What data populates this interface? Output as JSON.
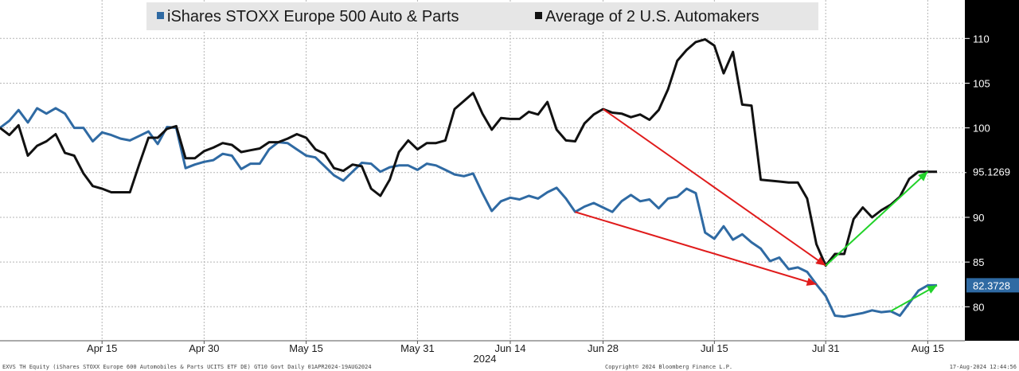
{
  "chart_data": {
    "type": "line",
    "title": "",
    "ylim": [
      76.2,
      114.3
    ],
    "y_ticks": [
      80,
      85,
      90,
      95,
      100,
      105,
      110
    ],
    "y_axis_position": "right",
    "grid": true,
    "legend_placement": "top",
    "x_ticks": [
      {
        "label": "Apr 15",
        "i": 11
      },
      {
        "label": "Apr 30",
        "i": 22
      },
      {
        "label": "May 15",
        "i": 33
      },
      {
        "label": "May 31",
        "i": 45
      },
      {
        "label": "Jun 14",
        "i": 55
      },
      {
        "label": "Jun 28",
        "i": 65
      },
      {
        "label": "Jul 15",
        "i": 77
      },
      {
        "label": "Jul 31",
        "i": 89
      },
      {
        "label": "Aug 15",
        "i": 100
      }
    ],
    "x_range": [
      0,
      104
    ],
    "xlabel": "2024",
    "series": [
      {
        "name": "iShares STOXX Europe 500 Auto & Parts",
        "color": "#2f6aa3",
        "last_value": "82.3728",
        "values": [
          100.0,
          100.8,
          102.0,
          100.6,
          102.2,
          101.6,
          102.2,
          101.6,
          100.0,
          100.0,
          98.5,
          99.5,
          99.2,
          98.8,
          98.6,
          99.1,
          99.6,
          98.2,
          100.1,
          100.0,
          95.5,
          95.9,
          96.2,
          96.4,
          97.1,
          96.9,
          95.4,
          96.0,
          96.0,
          97.6,
          98.4,
          98.3,
          97.6,
          96.9,
          96.7,
          95.7,
          94.7,
          94.1,
          95.1,
          96.1,
          96.0,
          95.1,
          95.6,
          95.8,
          95.8,
          95.3,
          96.0,
          95.8,
          95.3,
          94.8,
          94.6,
          94.9,
          92.7,
          90.7,
          91.8,
          92.2,
          92.0,
          92.4,
          92.1,
          92.8,
          93.3,
          92.1,
          90.6,
          91.2,
          91.6,
          91.1,
          90.6,
          91.8,
          92.5,
          91.8,
          92.0,
          91.0,
          92.1,
          92.3,
          93.2,
          92.7,
          88.3,
          87.6,
          89.0,
          87.5,
          88.1,
          87.2,
          86.5,
          85.1,
          85.5,
          84.2,
          84.4,
          83.9,
          82.5,
          81.2,
          79.0,
          78.9,
          79.1,
          79.3,
          79.6,
          79.4,
          79.5,
          79.0,
          80.4,
          81.8,
          82.4,
          82.4
        ]
      },
      {
        "name": "Average of 2 U.S. Automakers",
        "color": "#111111",
        "last_value": "95.1269",
        "values": [
          100.0,
          99.2,
          100.3,
          96.9,
          98.0,
          98.5,
          99.3,
          97.2,
          96.9,
          94.9,
          93.5,
          93.2,
          92.8,
          92.8,
          92.8,
          95.9,
          98.9,
          98.9,
          99.9,
          100.2,
          96.6,
          96.6,
          97.4,
          97.8,
          98.3,
          98.1,
          97.3,
          97.5,
          97.7,
          98.4,
          98.4,
          98.8,
          99.3,
          98.9,
          97.6,
          97.1,
          95.5,
          95.2,
          95.9,
          95.7,
          93.2,
          92.4,
          94.2,
          97.3,
          98.6,
          97.6,
          98.3,
          98.3,
          98.6,
          102.1,
          103.0,
          103.9,
          101.6,
          99.8,
          101.1,
          101.0,
          101.0,
          101.8,
          101.5,
          102.9,
          99.8,
          98.6,
          98.5,
          100.5,
          101.5,
          102.1,
          101.7,
          101.6,
          101.2,
          101.5,
          100.9,
          102.0,
          104.3,
          107.5,
          108.7,
          109.6,
          109.9,
          109.2,
          106.1,
          108.5,
          102.6,
          102.5,
          94.2,
          94.1,
          94.0,
          93.9,
          93.9,
          92.1,
          87.0,
          84.6,
          85.9,
          85.9,
          89.8,
          91.1,
          90.0,
          90.8,
          91.4,
          92.3,
          94.3,
          95.1,
          95.1,
          95.1
        ]
      }
    ],
    "annotations": [
      {
        "type": "arrow",
        "color": "#e01b1b",
        "series": 1,
        "from_i": 65,
        "to_i": 89
      },
      {
        "type": "arrow",
        "color": "#e01b1b",
        "series": 0,
        "from_i": 62,
        "to_i": 88
      },
      {
        "type": "arrow",
        "color": "#22d22a",
        "series": 1,
        "from_i": 89,
        "to_i": 100
      },
      {
        "type": "arrow",
        "color": "#22d22a",
        "series": 0,
        "from_i": 96,
        "to_i": 101
      }
    ]
  },
  "footer": {
    "left": "EXVS TH Equity (iShares STOXX Europe 600 Automobiles & Parts UCITS ETF DE) GT10  Govt  Daily 01APR2024-19AUG2024",
    "center": "Copyright© 2024 Bloomberg Finance L.P.",
    "right": "17-Aug-2024 12:44:56"
  },
  "colors": {
    "axis_panel": "#000000",
    "europe_label_bg": "#2f6aa3",
    "grid": "#b5b5b5"
  }
}
